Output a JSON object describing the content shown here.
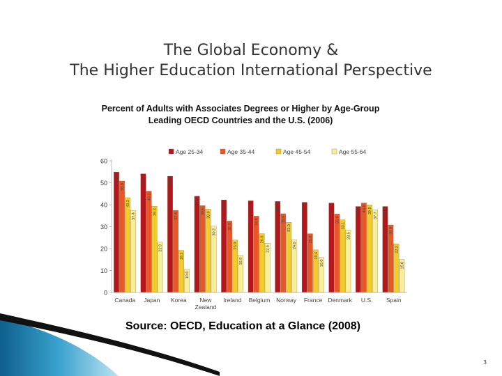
{
  "slide": {
    "title_line1": "The Global Economy &",
    "title_line2": "The Higher Education International Perspective",
    "source": "Source: OECD, Education at a Glance (2008)",
    "page_number": "3"
  },
  "chart_data": {
    "type": "bar",
    "title": "Percent of Adults with Associates Degrees or Higher by Age-Group",
    "subtitle": "Leading OECD Countries and the U.S. (2006)",
    "xlabel": "",
    "ylabel": "",
    "ylim": [
      0,
      60
    ],
    "yticks": [
      0,
      10,
      20,
      30,
      40,
      50,
      60
    ],
    "grid": false,
    "legend_position": "top",
    "categories": [
      "Canada",
      "Japan",
      "Korea",
      "New Zealand",
      "Ireland",
      "Belgium",
      "Norway",
      "France",
      "Denmark",
      "U.S.",
      "Spain"
    ],
    "category_lines": [
      [
        "Canada"
      ],
      [
        "Japan"
      ],
      [
        "Korea"
      ],
      [
        "New",
        "Zealand"
      ],
      [
        "Ireland"
      ],
      [
        "Belgium"
      ],
      [
        "Norway"
      ],
      [
        "France"
      ],
      [
        "Denmark"
      ],
      [
        "U.S."
      ],
      [
        "Spain"
      ]
    ],
    "series": [
      {
        "name": "Age 25-34",
        "color": "#b3161c",
        "values": [
          54.9,
          54.1,
          53.0,
          43.9,
          42.2,
          41.8,
          41.5,
          41.1,
          40.8,
          39.2,
          39.2
        ]
      },
      {
        "name": "Age 35-44",
        "color": "#e8572a",
        "values": [
          50.8,
          46.2,
          37.4,
          39.6,
          32.6,
          34.8,
          35.9,
          26.8,
          35.8,
          40.8,
          30.8
        ]
      },
      {
        "name": "Age 45-54",
        "color": "#f2cc2c",
        "values": [
          43.2,
          39.3,
          19.2,
          38.0,
          23.9,
          26.8,
          32.0,
          19.4,
          33.1,
          39.9,
          22.2
        ]
      },
      {
        "name": "Age 55-64",
        "color": "#f8ef9a",
        "values": [
          37.4,
          22.9,
          10.6,
          30.2,
          16.9,
          22.5,
          24.0,
          16.0,
          28.5,
          37.7,
          15.0
        ]
      }
    ]
  }
}
